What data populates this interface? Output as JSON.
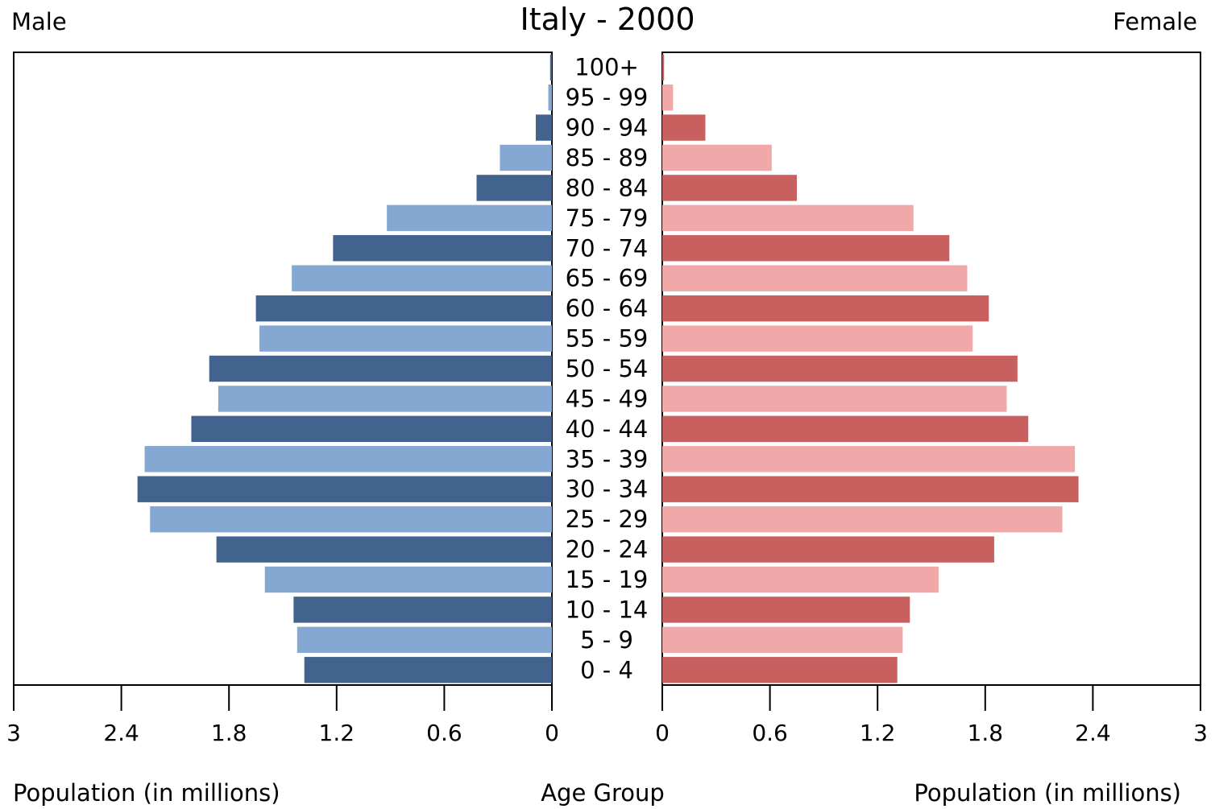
{
  "chart_data": {
    "type": "bar",
    "title": "Italy - 2000",
    "left_label": "Male",
    "right_label": "Female",
    "xlabel_left": "Population (in millions)",
    "xlabel_center": "Age Group",
    "xlabel_right": "Population (in millions)",
    "xlim": [
      0,
      3
    ],
    "ticks": [
      "3",
      "2.4",
      "1.8",
      "1.2",
      "0.6",
      "0"
    ],
    "ticks_right": [
      "0",
      "0.6",
      "1.2",
      "1.8",
      "2.4",
      "3"
    ],
    "categories": [
      "0 - 4",
      "5 - 9",
      "10 - 14",
      "15 - 19",
      "20 - 24",
      "25 - 29",
      "30 - 34",
      "35 - 39",
      "40 - 44",
      "45 - 49",
      "50 - 54",
      "55 - 59",
      "60 - 64",
      "65 - 69",
      "70 - 74",
      "75 - 79",
      "80 - 84",
      "85 - 89",
      "90 - 94",
      "95 - 99",
      "100+"
    ],
    "series": [
      {
        "name": "Male",
        "values": [
          1.38,
          1.42,
          1.44,
          1.6,
          1.87,
          2.24,
          2.31,
          2.27,
          2.01,
          1.86,
          1.91,
          1.63,
          1.65,
          1.45,
          1.22,
          0.92,
          0.42,
          0.29,
          0.09,
          0.02,
          0.01
        ]
      },
      {
        "name": "Female",
        "values": [
          1.31,
          1.34,
          1.38,
          1.54,
          1.85,
          2.23,
          2.32,
          2.3,
          2.04,
          1.92,
          1.98,
          1.73,
          1.82,
          1.7,
          1.6,
          1.4,
          0.75,
          0.61,
          0.24,
          0.06,
          0.01
        ]
      }
    ],
    "colors": {
      "male_dark": "#41638d",
      "male_light": "#84a8d1",
      "female_dark": "#c86060",
      "female_light": "#f0a8a8"
    }
  }
}
